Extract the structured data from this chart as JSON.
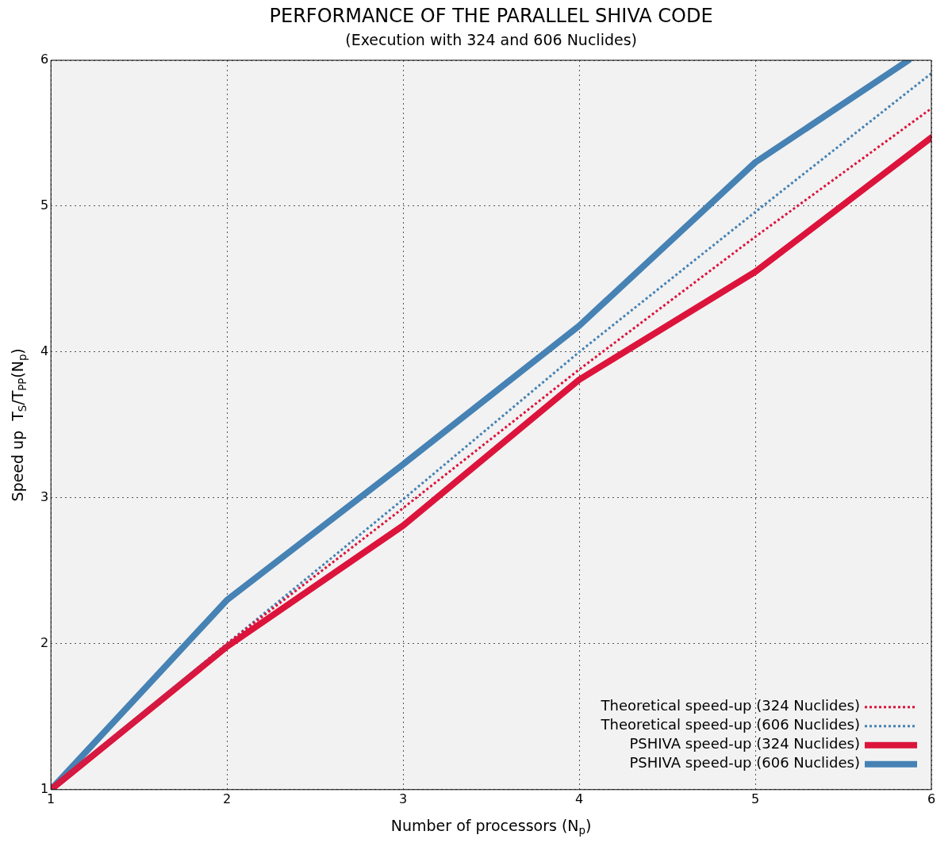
{
  "chart_data": {
    "type": "line",
    "title": "PERFORMANCE OF THE PARALLEL SHIVA CODE",
    "subtitle": "(Execution with 324 and 606 Nuclides)",
    "xlabel": "Number of processors (N$_{p}$)",
    "ylabel": "Speed up  T$_{S}$/T$_{PP}$(N$_{p}$)",
    "x": [
      1,
      2,
      3,
      4,
      5,
      6
    ],
    "series": [
      {
        "name": "Theoretical speed-up (324 Nuclides)",
        "color": "#dc143c",
        "line_style": "dotted",
        "values": [
          1,
          2,
          2.93,
          3.88,
          4.79,
          5.67
        ]
      },
      {
        "name": "Theoretical speed-up (606 Nuclides)",
        "color": "#4682b4",
        "line_style": "dotted",
        "values": [
          1,
          2,
          2.99,
          4.0,
          4.96,
          5.91
        ]
      },
      {
        "name": "PSHIVA speed-up (324 Nuclides)",
        "color": "#dc143c",
        "line_style": "solid",
        "values": [
          1,
          1.98,
          2.81,
          3.81,
          4.55,
          5.47
        ]
      },
      {
        "name": "PSHIVA speed-up (606 Nuclides)",
        "color": "#4682b4",
        "line_style": "solid",
        "x": [
          1,
          2,
          3,
          4,
          5,
          5.87
        ],
        "values": [
          1,
          2.3,
          3.23,
          4.18,
          5.3,
          6
        ]
      }
    ],
    "xlim": [
      1,
      6
    ],
    "xticks": [
      1,
      2,
      3,
      4,
      5,
      6
    ],
    "ylim": [
      1,
      6
    ],
    "yticks": [
      1,
      2,
      3,
      4,
      5,
      6
    ],
    "grid": true,
    "legend": "bottom right",
    "marker": "none"
  }
}
